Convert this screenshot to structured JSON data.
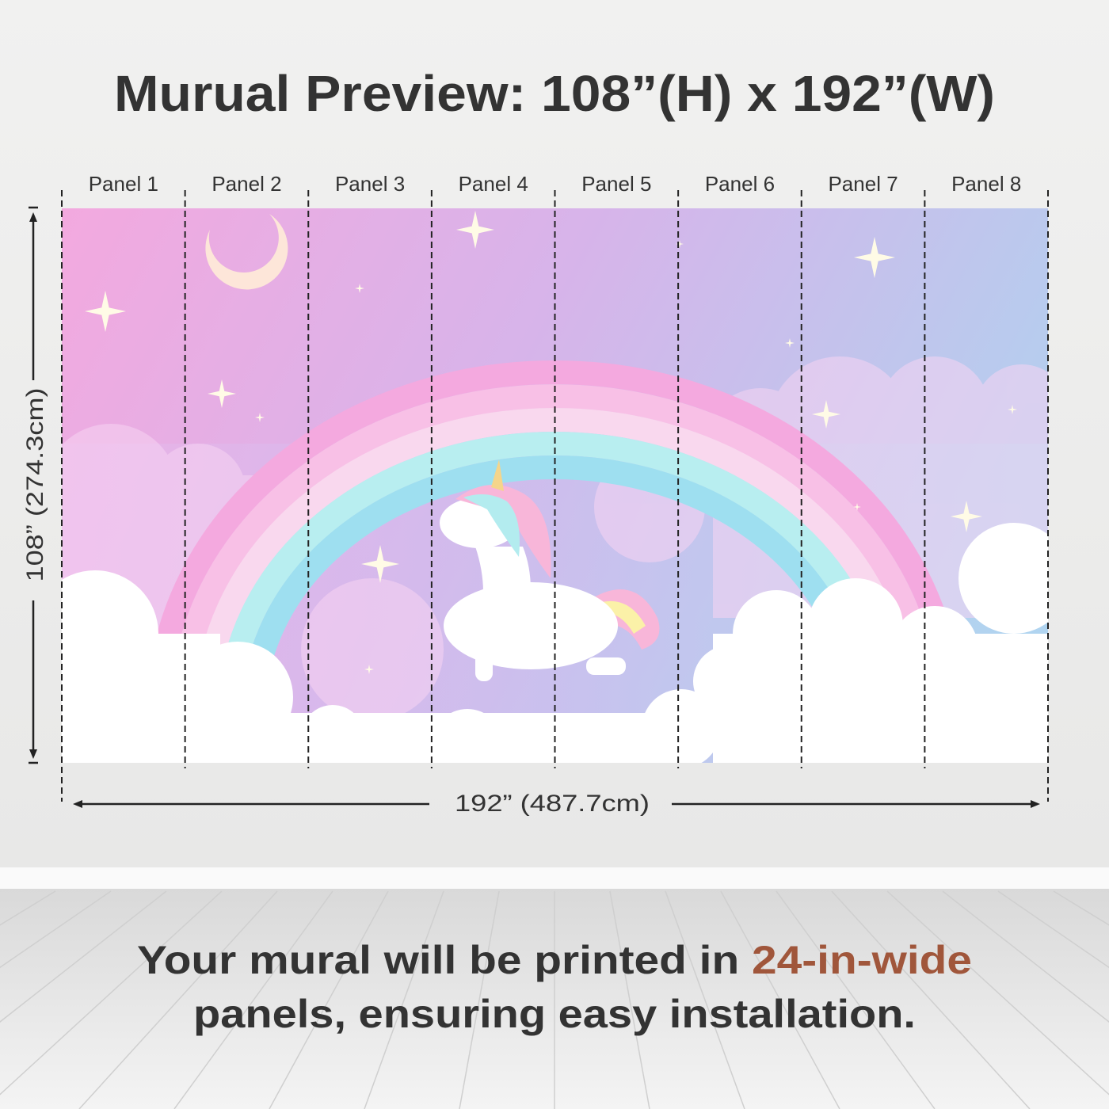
{
  "title": "Murual Preview: 108”(H) x 192”(W)",
  "panels": [
    "Panel 1",
    "Panel 2",
    "Panel 3",
    "Panel 4",
    "Panel 5",
    "Panel 6",
    "Panel 7",
    "Panel 8"
  ],
  "height_label": "108” (274.3cm)",
  "width_label": "192” (487.7cm)",
  "caption": {
    "line1": "Your mural will be printed in ",
    "highlight": "24-in-wide",
    "line2": "panels, ensuring easy installation."
  }
}
